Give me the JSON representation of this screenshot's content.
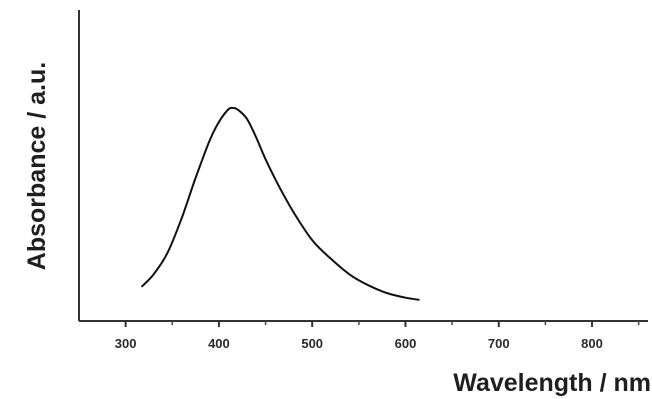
{
  "chart_data": {
    "type": "line",
    "title": "",
    "xlabel": "Wavelength / nm",
    "ylabel": "Absorbance / a.u.",
    "xlim": [
      250,
      860
    ],
    "ylim": [
      0,
      1
    ],
    "x_ticks": [
      300,
      400,
      500,
      600,
      700,
      800
    ],
    "x_tick_labels": [
      "300",
      "400",
      "500",
      "600",
      "700",
      "800"
    ],
    "y_tick_labels": [],
    "grid": false,
    "legend": "none",
    "series": [
      {
        "color": "#111111",
        "x": [
          317,
          330,
          345,
          360,
          375,
          390,
          400,
          410,
          415,
          420,
          430,
          440,
          450,
          465,
          480,
          500,
          520,
          540,
          560,
          580,
          600,
          615
        ],
        "y": [
          0.11,
          0.15,
          0.22,
          0.33,
          0.46,
          0.58,
          0.64,
          0.68,
          0.685,
          0.68,
          0.65,
          0.59,
          0.52,
          0.43,
          0.35,
          0.26,
          0.2,
          0.15,
          0.115,
          0.09,
          0.075,
          0.068
        ]
      }
    ]
  }
}
